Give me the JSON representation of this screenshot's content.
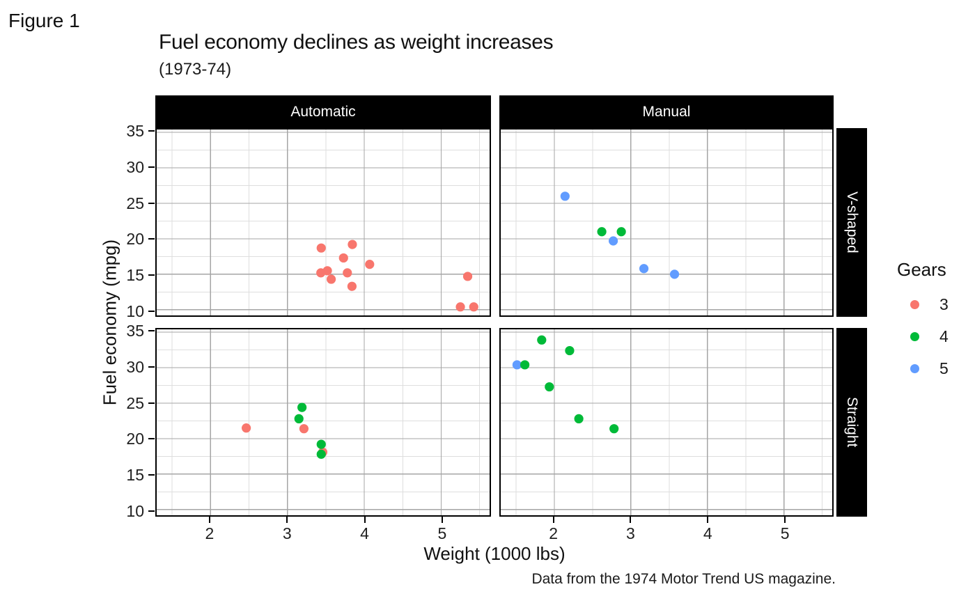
{
  "figure_label": "Figure 1",
  "chart": {
    "title": "Fuel economy declines as weight increases",
    "subtitle": "(1973-74)",
    "caption": "Data from the 1974 Motor Trend US magazine.",
    "xlabel": "Weight (1000 lbs)",
    "ylabel": "Fuel economy (mpg)"
  },
  "legend": {
    "title": "Gears",
    "entries": [
      {
        "label": "3",
        "color": "#F8766D"
      },
      {
        "label": "4",
        "color": "#00BA38"
      },
      {
        "label": "5",
        "color": "#619CFF"
      }
    ]
  },
  "chart_data": {
    "type": "scatter",
    "title": "Fuel economy declines as weight increases",
    "subtitle": "(1973-74)",
    "xlabel": "Weight (1000 lbs)",
    "ylabel": "Fuel economy (mpg)",
    "caption": "Data from the 1974 Motor Trend US magazine.",
    "legend_title": "Gears",
    "legend_position": "right",
    "grid": "major-and-minor",
    "facet_cols": [
      "Automatic",
      "Manual"
    ],
    "facet_rows": [
      "V-shaped",
      "Straight"
    ],
    "x_domain": [
      1.3,
      5.63
    ],
    "y_domain": [
      9.2,
      35.4
    ],
    "x_ticks": [
      2,
      3,
      4,
      5
    ],
    "y_ticks": [
      35,
      30,
      25,
      20,
      15,
      10
    ],
    "x_minor": [
      1.5,
      2.5,
      3.5,
      4.5,
      5.5
    ],
    "y_minor": [
      12.5,
      17.5,
      22.5,
      27.5,
      32.5
    ],
    "point_format": [
      "weight_1000lbs",
      "mpg",
      "gears"
    ],
    "colors": {
      "3": "#F8766D",
      "4": "#00BA38",
      "5": "#619CFF"
    },
    "panels": [
      {
        "col": "Automatic",
        "row": "V-shaped",
        "points": [
          [
            3.44,
            18.7,
            3
          ],
          [
            3.57,
            14.3,
            3
          ],
          [
            4.07,
            16.4,
            3
          ],
          [
            3.73,
            17.3,
            3
          ],
          [
            3.78,
            15.2,
            3
          ],
          [
            5.25,
            10.4,
            3
          ],
          [
            5.424,
            10.4,
            3
          ],
          [
            5.345,
            14.7,
            3
          ],
          [
            3.52,
            15.5,
            3
          ],
          [
            3.435,
            15.2,
            3
          ],
          [
            3.84,
            13.3,
            3
          ],
          [
            3.845,
            19.2,
            3
          ]
        ]
      },
      {
        "col": "Manual",
        "row": "V-shaped",
        "points": [
          [
            2.62,
            21.0,
            4
          ],
          [
            2.875,
            21.0,
            4
          ],
          [
            2.14,
            26.0,
            5
          ],
          [
            3.17,
            15.8,
            5
          ],
          [
            2.77,
            19.7,
            5
          ],
          [
            3.57,
            15.0,
            5
          ]
        ]
      },
      {
        "col": "Automatic",
        "row": "Straight",
        "points": [
          [
            3.215,
            21.4,
            3
          ],
          [
            3.46,
            18.1,
            3
          ],
          [
            3.19,
            24.4,
            4
          ],
          [
            3.15,
            22.8,
            4
          ],
          [
            3.44,
            19.2,
            4
          ],
          [
            3.44,
            17.8,
            4
          ],
          [
            2.465,
            21.5,
            3
          ]
        ]
      },
      {
        "col": "Manual",
        "row": "Straight",
        "points": [
          [
            2.32,
            22.8,
            4
          ],
          [
            2.2,
            32.4,
            4
          ],
          [
            1.513,
            30.4,
            5
          ],
          [
            1.615,
            30.4,
            4
          ],
          [
            1.835,
            33.9,
            4
          ],
          [
            1.935,
            27.3,
            4
          ],
          [
            2.78,
            21.4,
            4
          ]
        ]
      }
    ]
  }
}
